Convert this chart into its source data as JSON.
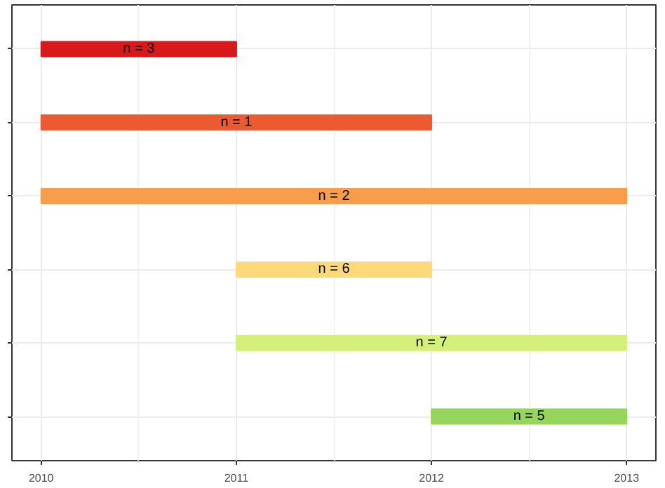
{
  "chart_data": {
    "type": "bar",
    "orientation": "horizontal",
    "categories": [
      null,
      null,
      null,
      null,
      null,
      null
    ],
    "base": [
      2010,
      2010,
      2010,
      2011,
      2011,
      2012
    ],
    "values": [
      1,
      2,
      3,
      1,
      2,
      1
    ],
    "colors": [
      "#d7191c",
      "#ec5a32",
      "#f89d4c",
      "#fed97a",
      "#d5ef7b",
      "#94d55a"
    ],
    "annotations": [
      "n = 3",
      "n = 1",
      "n = 2",
      "n = 6",
      "n = 7",
      "n = 5"
    ],
    "xlim": [
      2009.85,
      2013.15
    ],
    "xticks": [
      2010,
      2011,
      2012,
      2013
    ],
    "grid": true,
    "tick_labels": "x"
  }
}
